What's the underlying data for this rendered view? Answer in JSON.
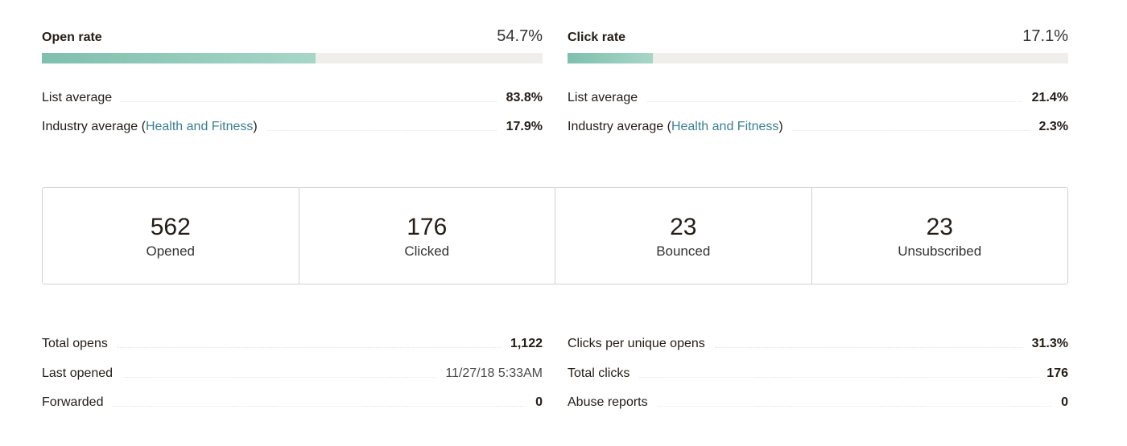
{
  "open_rate": {
    "title": "Open rate",
    "value": "54.7%",
    "fill_percent": 54.7,
    "list_average_label": "List average",
    "list_average_value": "83.8%",
    "industry_label_prefix": "Industry average (",
    "industry_link": "Health and Fitness",
    "industry_label_suffix": ")",
    "industry_value": "17.9%"
  },
  "click_rate": {
    "title": "Click rate",
    "value": "17.1%",
    "fill_percent": 17.1,
    "list_average_label": "List average",
    "list_average_value": "21.4%",
    "industry_label_prefix": "Industry average (",
    "industry_link": "Health and Fitness",
    "industry_label_suffix": ")",
    "industry_value": "2.3%"
  },
  "stats": [
    {
      "number": "562",
      "label": "Opened"
    },
    {
      "number": "176",
      "label": "Clicked"
    },
    {
      "number": "23",
      "label": "Bounced"
    },
    {
      "number": "23",
      "label": "Unsubscribed"
    }
  ],
  "details_left": [
    {
      "label": "Total opens",
      "value": "1,122"
    },
    {
      "label": "Last opened",
      "value": "11/27/18 5:33AM"
    },
    {
      "label": "Forwarded",
      "value": "0"
    }
  ],
  "details_right": [
    {
      "label": "Clicks per unique opens",
      "value": "31.3%"
    },
    {
      "label": "Total clicks",
      "value": "176"
    },
    {
      "label": "Abuse reports",
      "value": "0"
    }
  ],
  "colors": {
    "bar_fill": "#7fbfad",
    "bar_track": "#efeeea",
    "link": "#3a7f95"
  }
}
